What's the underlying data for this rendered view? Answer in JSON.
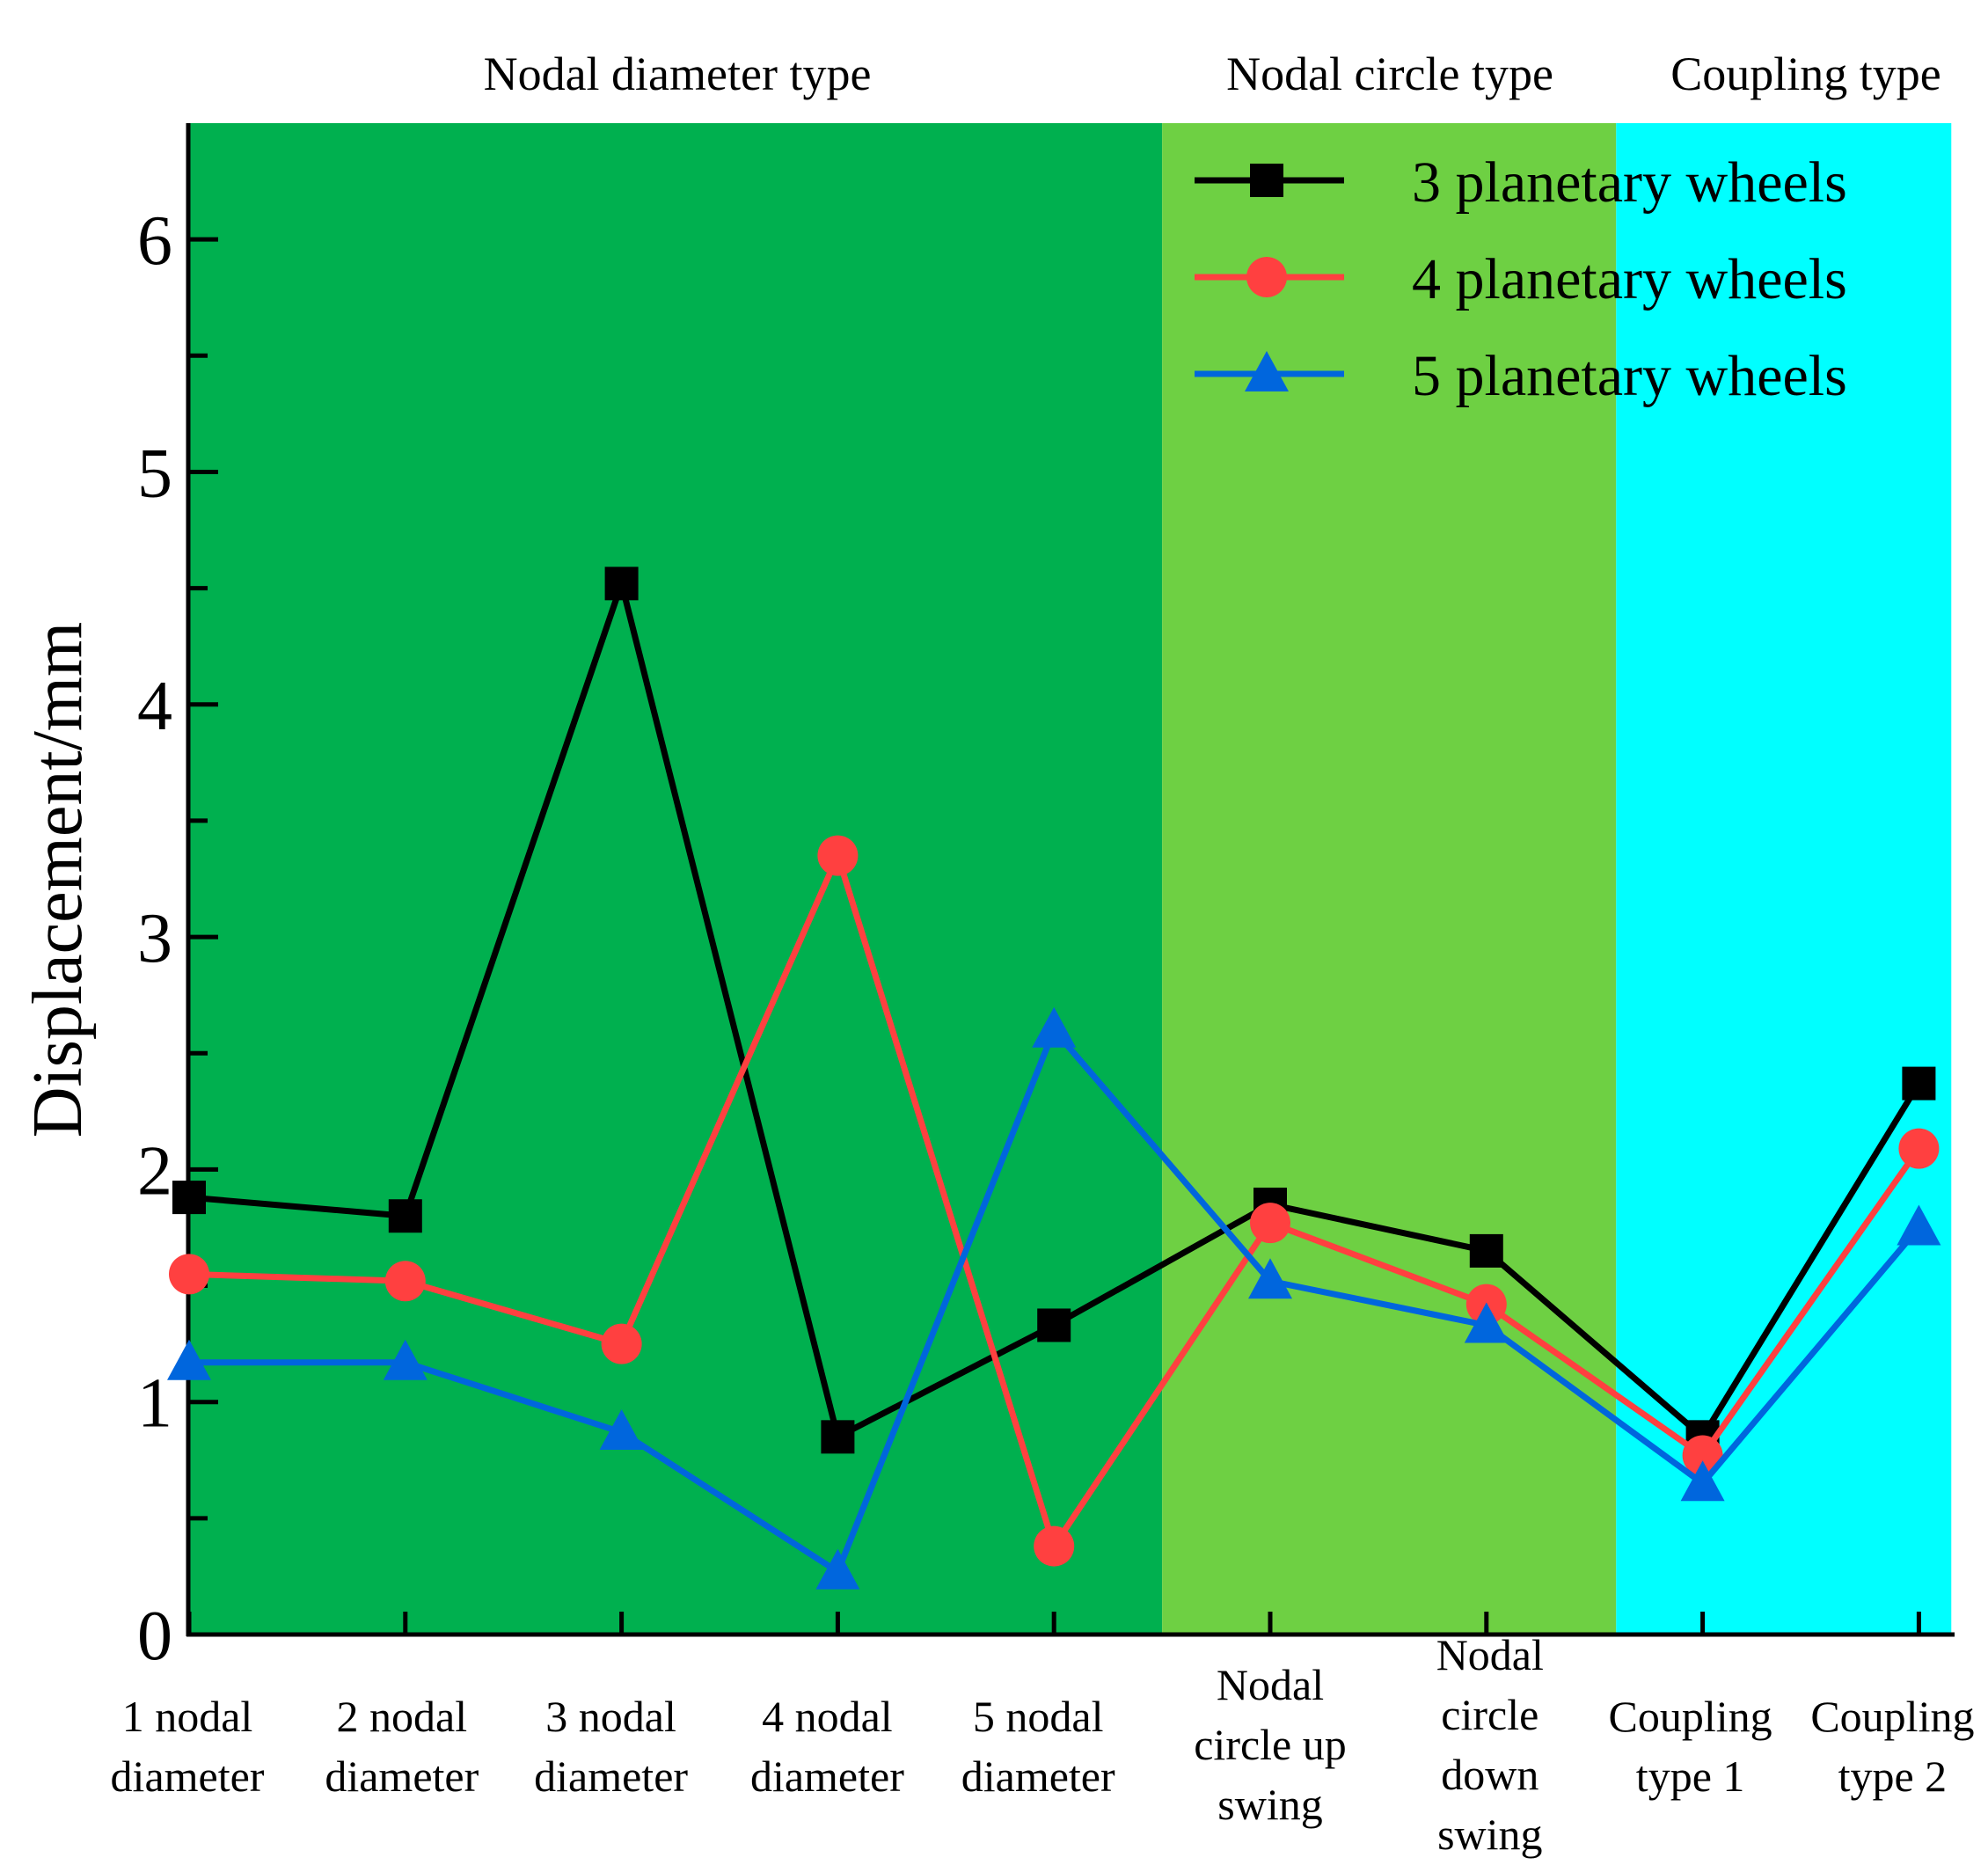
{
  "chart_data": {
    "type": "line",
    "title": "",
    "xlabel": "",
    "ylabel": "Displacement/mm",
    "ylim": [
      0,
      6.5
    ],
    "yticks": [
      "0",
      "1",
      "2",
      "3",
      "4",
      "5",
      "6"
    ],
    "grid": false,
    "legend_position": "top-right",
    "regions": [
      {
        "label": "Nodal diameter type",
        "from": 0,
        "to": 4.5,
        "color": "#00b04f"
      },
      {
        "label": "Nodal circle type",
        "from": 4.5,
        "to": 6.6,
        "color": "#6ed043"
      },
      {
        "label": "Coupling type",
        "from": 6.6,
        "to": 8.15,
        "color": "#00ffff"
      }
    ],
    "categories": [
      [
        "1 nodal",
        "diameter"
      ],
      [
        "2 nodal",
        "diameter"
      ],
      [
        "3 nodal",
        "diameter"
      ],
      [
        "4 nodal",
        "diameter"
      ],
      [
        "5 nodal",
        "diameter"
      ],
      [
        "Nodal",
        "circle up",
        "swing"
      ],
      [
        "Nodal",
        "circle",
        "down",
        "swing"
      ],
      [
        "Coupling",
        "type 1"
      ],
      [
        "Coupling",
        "type 2"
      ]
    ],
    "series": [
      {
        "name": "3 planetary wheels",
        "color": "#000000",
        "marker": "square",
        "values": [
          1.88,
          1.8,
          4.52,
          0.85,
          1.33,
          1.85,
          1.65,
          0.85,
          2.37
        ]
      },
      {
        "name": "4 planetary wheels",
        "color": "#ff4040",
        "marker": "circle",
        "values": [
          1.55,
          1.52,
          1.25,
          3.35,
          0.38,
          1.77,
          1.42,
          0.77,
          2.09
        ]
      },
      {
        "name": "5 planetary wheels",
        "color": "#0066dd",
        "marker": "triangle",
        "values": [
          1.17,
          1.17,
          0.87,
          0.27,
          2.6,
          1.52,
          1.33,
          0.65,
          1.75
        ]
      }
    ]
  }
}
